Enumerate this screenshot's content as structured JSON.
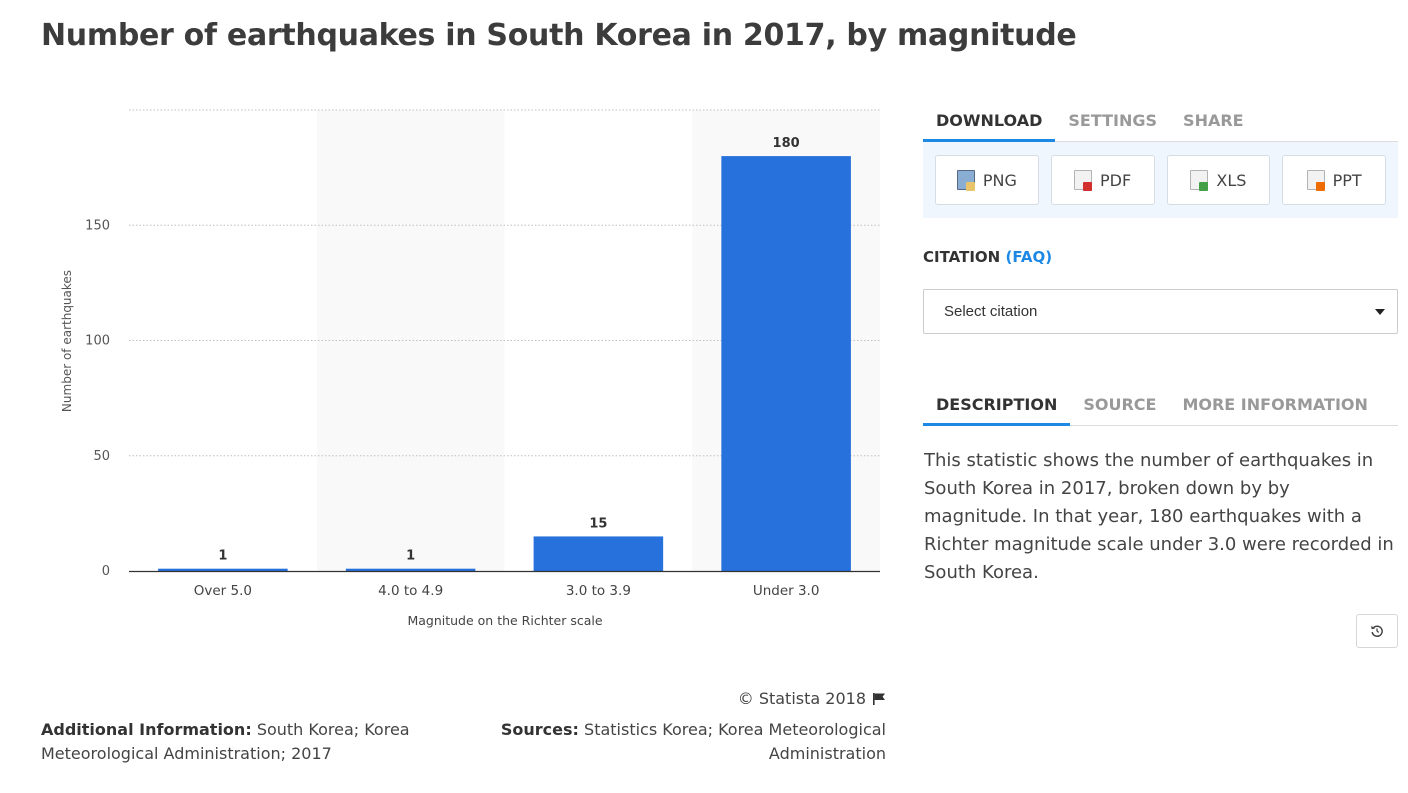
{
  "page": {
    "title": "Number of earthquakes in South Korea in 2017, by magnitude"
  },
  "chart_data": {
    "type": "bar",
    "categories": [
      "Over 5.0",
      "4.0 to 4.9",
      "3.0 to 3.9",
      "Under 3.0"
    ],
    "values": [
      1,
      1,
      15,
      180
    ],
    "data_labels": [
      "1",
      "1",
      "15",
      "180"
    ],
    "xlabel": "Magnitude on the Richter scale",
    "ylabel": "Number of earthquakes",
    "yticks": [
      0,
      50,
      100,
      150
    ],
    "ylim": [
      0,
      200
    ],
    "grid": true,
    "bar_color": "#2771dd",
    "band_color": "#f9f9f9"
  },
  "footer": {
    "copyright": "© Statista 2018",
    "additional_info_label": "Additional Information:",
    "additional_info_text": "South Korea; Korea Meteorological Administration; 2017",
    "sources_label": "Sources:",
    "sources_text": "Statistics Korea; Korea Meteorological Administration"
  },
  "sidebar": {
    "top_tabs": [
      {
        "label": "DOWNLOAD",
        "active": true
      },
      {
        "label": "SETTINGS",
        "active": false
      },
      {
        "label": "SHARE",
        "active": false
      }
    ],
    "downloads": [
      {
        "label": "PNG",
        "icon": "png-file-icon"
      },
      {
        "label": "PDF",
        "icon": "pdf-file-icon"
      },
      {
        "label": "XLS",
        "icon": "xls-file-icon"
      },
      {
        "label": "PPT",
        "icon": "ppt-file-icon"
      }
    ],
    "citation_label": "CITATION",
    "faq_label": "(FAQ)",
    "citation_select": "Select citation",
    "bottom_tabs": [
      {
        "label": "DESCRIPTION",
        "active": true
      },
      {
        "label": "SOURCE",
        "active": false
      },
      {
        "label": "MORE INFORMATION",
        "active": false
      }
    ],
    "description": "This statistic shows the number of earthquakes in South Korea in 2017, broken down by by magnitude. In that year, 180 earthquakes with a Richter magnitude scale under 3.0 were recorded in South Korea."
  },
  "colors": {
    "accent": "#1e88e5"
  }
}
